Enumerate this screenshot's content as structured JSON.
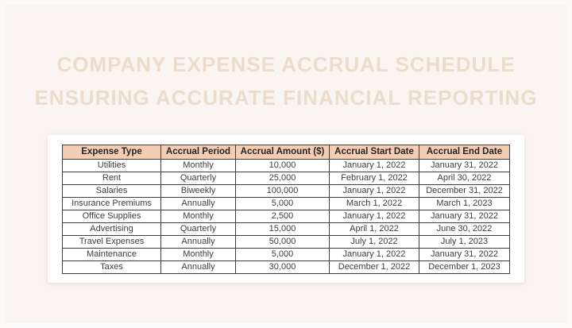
{
  "page": {
    "background_color": "#fbf5f1",
    "card_color": "#ffffff",
    "title_color": "#ecdccb",
    "title_line1": "COMPANY EXPENSE ACCRUAL SCHEDULE",
    "title_line2": "ENSURING ACCURATE FINANCIAL REPORTING"
  },
  "table": {
    "header_bg_color": "#f5cdb3",
    "border_color": "#3f3f3f",
    "columns": [
      "Expense Type",
      "Accrual Period",
      "Accrual Amount ($)",
      "Accrual Start Date",
      "Accrual End Date"
    ],
    "rows": [
      {
        "expense_type": "Utilities",
        "accrual_period": "Monthly",
        "accrual_amount": "10,000",
        "accrual_start_date": "January 1, 2022",
        "accrual_end_date": "January 31, 2022"
      },
      {
        "expense_type": "Rent",
        "accrual_period": "Quarterly",
        "accrual_amount": "25,000",
        "accrual_start_date": "February 1, 2022",
        "accrual_end_date": "April 30, 2022"
      },
      {
        "expense_type": "Salaries",
        "accrual_period": "Biweekly",
        "accrual_amount": "100,000",
        "accrual_start_date": "January 1, 2022",
        "accrual_end_date": "December 31, 2022"
      },
      {
        "expense_type": "Insurance Premiums",
        "accrual_period": "Annually",
        "accrual_amount": "5,000",
        "accrual_start_date": "March 1, 2022",
        "accrual_end_date": "March 1, 2023"
      },
      {
        "expense_type": "Office Supplies",
        "accrual_period": "Monthly",
        "accrual_amount": "2,500",
        "accrual_start_date": "January 1, 2022",
        "accrual_end_date": "January 31, 2022"
      },
      {
        "expense_type": "Advertising",
        "accrual_period": "Quarterly",
        "accrual_amount": "15,000",
        "accrual_start_date": "April 1, 2022",
        "accrual_end_date": "June 30, 2022"
      },
      {
        "expense_type": "Travel Expenses",
        "accrual_period": "Annually",
        "accrual_amount": "50,000",
        "accrual_start_date": "July 1, 2022",
        "accrual_end_date": "July 1, 2023"
      },
      {
        "expense_type": "Maintenance",
        "accrual_period": "Monthly",
        "accrual_amount": "5,000",
        "accrual_start_date": "January 1, 2022",
        "accrual_end_date": "January 31, 2022"
      },
      {
        "expense_type": "Taxes",
        "accrual_period": "Annually",
        "accrual_amount": "30,000",
        "accrual_start_date": "December 1, 2022",
        "accrual_end_date": "December 1, 2023"
      }
    ]
  }
}
